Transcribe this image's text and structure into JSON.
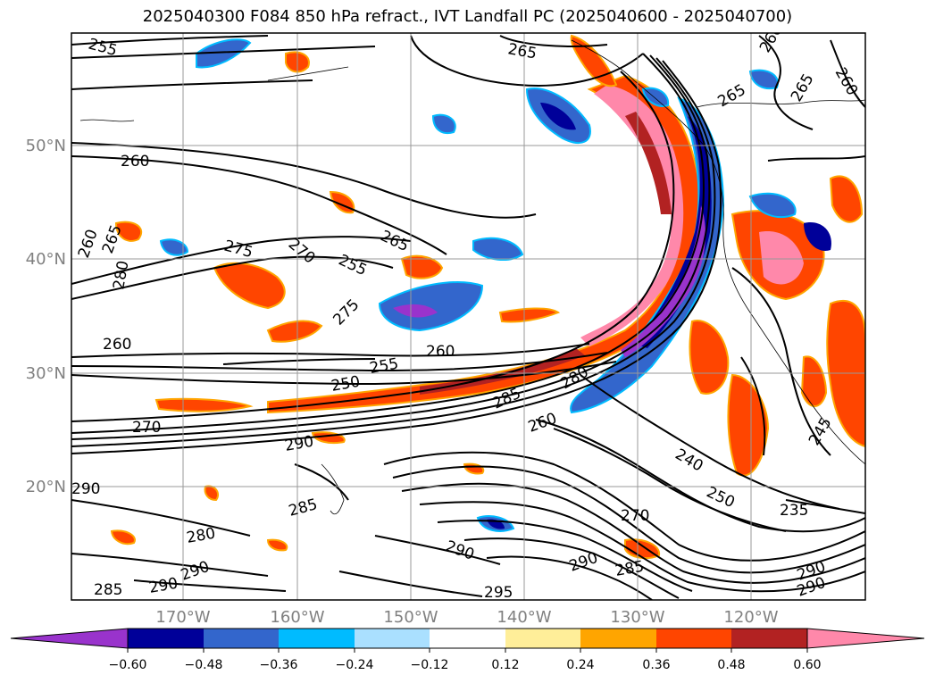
{
  "title": "2025040300 F084 850 hPa refract., IVT Landfall PC (2025040600 - 2025040700)",
  "map": {
    "lat_labels": [
      "50°N",
      "40°N",
      "30°N",
      "20°N"
    ],
    "lon_labels": [
      "170°W",
      "160°W",
      "150°W",
      "140°W",
      "130°W",
      "120°W"
    ],
    "gridlines": true,
    "contour_labels": [
      {
        "text": "255",
        "id": "c1"
      },
      {
        "text": "265",
        "id": "c2"
      },
      {
        "text": "260",
        "id": "c3"
      },
      {
        "text": "260",
        "id": "c4"
      },
      {
        "text": "265",
        "id": "c5"
      },
      {
        "text": "275",
        "id": "c6"
      },
      {
        "text": "270",
        "id": "c7"
      },
      {
        "text": "265",
        "id": "c8"
      },
      {
        "text": "255",
        "id": "c9"
      },
      {
        "text": "260",
        "id": "c10"
      },
      {
        "text": "265",
        "id": "c11"
      },
      {
        "text": "280",
        "id": "c12"
      },
      {
        "text": "275",
        "id": "c13"
      },
      {
        "text": "260",
        "id": "c14"
      },
      {
        "text": "260",
        "id": "c15"
      },
      {
        "text": "255",
        "id": "c16"
      },
      {
        "text": "250",
        "id": "c17"
      },
      {
        "text": "285",
        "id": "c18"
      },
      {
        "text": "280",
        "id": "c19"
      },
      {
        "text": "270",
        "id": "c20"
      },
      {
        "text": "260",
        "id": "c21"
      },
      {
        "text": "290",
        "id": "c22"
      },
      {
        "text": "290",
        "id": "c23"
      },
      {
        "text": "285",
        "id": "c24"
      },
      {
        "text": "280",
        "id": "c25"
      },
      {
        "text": "290",
        "id": "c26"
      },
      {
        "text": "285",
        "id": "c27"
      },
      {
        "text": "290",
        "id": "c28"
      },
      {
        "text": "290",
        "id": "c29"
      },
      {
        "text": "295",
        "id": "c30"
      },
      {
        "text": "290",
        "id": "c31"
      },
      {
        "text": "285",
        "id": "c32"
      },
      {
        "text": "270",
        "id": "c33"
      },
      {
        "text": "240",
        "id": "c34"
      },
      {
        "text": "250",
        "id": "c35"
      },
      {
        "text": "235",
        "id": "c36"
      },
      {
        "text": "265",
        "id": "c37"
      },
      {
        "text": "260",
        "id": "c38"
      },
      {
        "text": "245",
        "id": "c39"
      },
      {
        "text": "290",
        "id": "c40"
      },
      {
        "text": "290",
        "id": "c41"
      }
    ]
  },
  "colorbar": {
    "colors": [
      "#9933cc",
      "#000099",
      "#3366cc",
      "#00bbff",
      "#aae0ff",
      "#ffffff",
      "#ffee99",
      "#ffa500",
      "#ff4500",
      "#b22222",
      "#ff88aa"
    ],
    "tick_labels": [
      "−0.60",
      "−0.48",
      "−0.36",
      "−0.24",
      "−0.12",
      "0.12",
      "0.24",
      "0.36",
      "0.48",
      "0.60"
    ],
    "extend": "both"
  }
}
